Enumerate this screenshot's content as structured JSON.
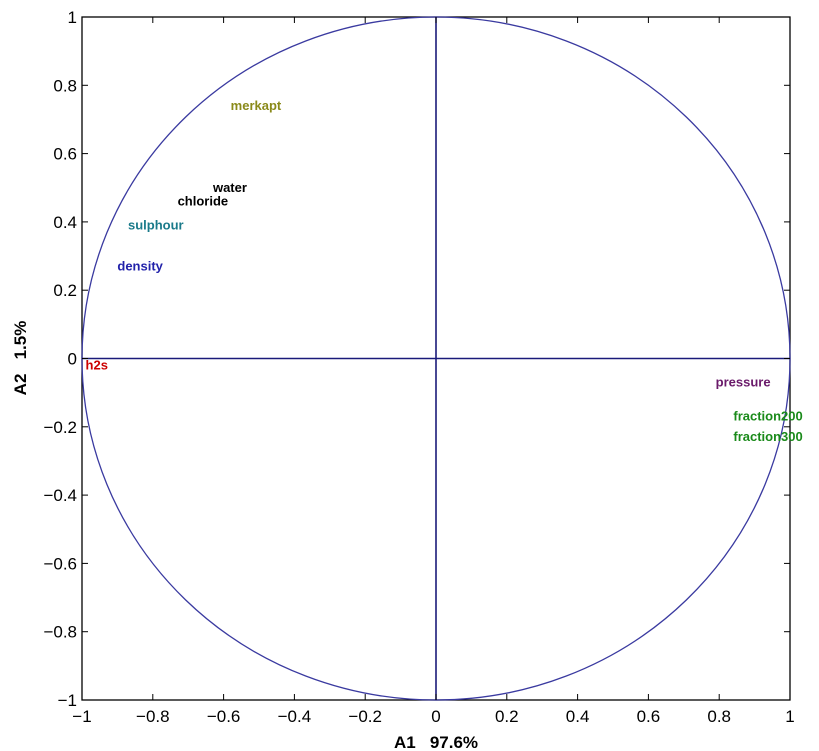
{
  "chart_data": {
    "type": "scatter",
    "title": "",
    "xlabel": "A1   97.6%",
    "ylabel": "A2   1.5%",
    "xlim": [
      -1,
      1
    ],
    "ylim": [
      -1,
      1
    ],
    "xticks": [
      "−1",
      "−0.8",
      "−0.6",
      "−0.4",
      "−0.2",
      "0",
      "0.2",
      "0.4",
      "0.6",
      "0.8",
      "1"
    ],
    "yticks": [
      "1",
      "0.8",
      "0.6",
      "0.4",
      "0.2",
      "0",
      "−0.2",
      "−0.4",
      "−0.6",
      "−0.8",
      "−1"
    ],
    "grid": false,
    "unit_circle": true,
    "circle_color": "#3a3aa0",
    "points": [
      {
        "name": "merkapt",
        "x": -0.58,
        "y": 0.74,
        "color": "#8a8a1a"
      },
      {
        "name": "water",
        "x": -0.63,
        "y": 0.5,
        "color": "#000000"
      },
      {
        "name": "chloride",
        "x": -0.73,
        "y": 0.46,
        "color": "#000000"
      },
      {
        "name": "sulphour",
        "x": -0.87,
        "y": 0.39,
        "color": "#1a7a8a"
      },
      {
        "name": "density",
        "x": -0.9,
        "y": 0.27,
        "color": "#2222aa"
      },
      {
        "name": "h2s",
        "x": -0.99,
        "y": -0.02,
        "color": "#cc0000"
      },
      {
        "name": "pressure",
        "x": 0.79,
        "y": -0.07,
        "color": "#6a1a6a"
      },
      {
        "name": "fraction200",
        "x": 0.84,
        "y": -0.17,
        "color": "#1a8a1a"
      },
      {
        "name": "fraction300",
        "x": 0.84,
        "y": -0.23,
        "color": "#1a8a1a"
      }
    ]
  }
}
